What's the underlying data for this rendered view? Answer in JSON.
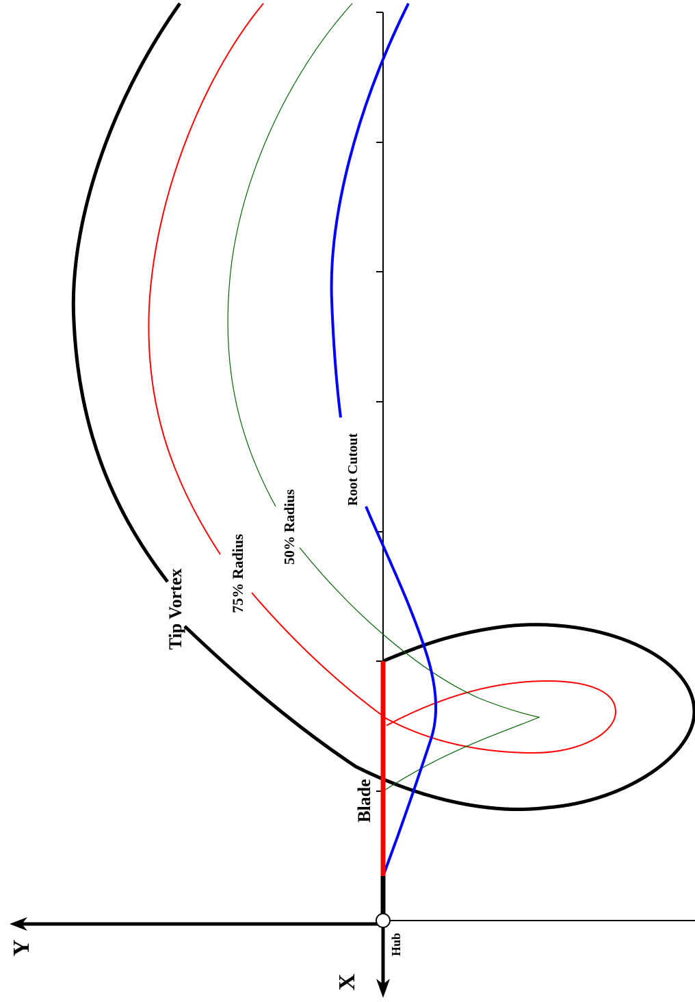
{
  "labels": {
    "tip_vortex": "Tip Vortex",
    "radius_75": "75% Radius",
    "radius_50": "50% Radius",
    "root_cutout": "Root Cutout",
    "blade": "Blade",
    "hub": "Hub",
    "axis_x": "X",
    "axis_y": "Y"
  },
  "colors": {
    "tip_vortex": "#000000",
    "radius_75": "#ff0000",
    "radius_50": "#006400",
    "root_cutout": "#0000ff",
    "blade": "#ff0000",
    "axes": "#000000"
  }
}
